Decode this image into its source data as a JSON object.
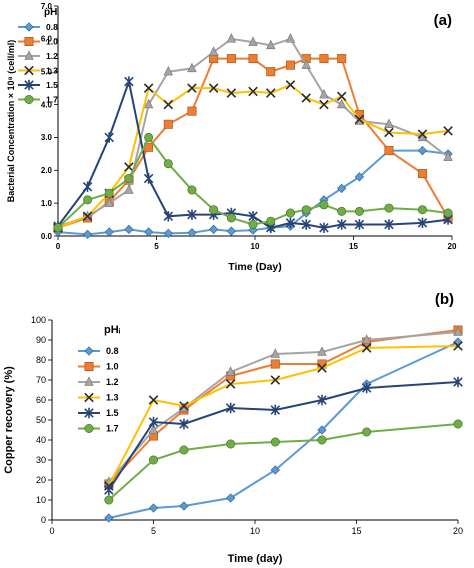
{
  "chart_data": [
    {
      "type": "line",
      "panel_label": "(a)",
      "title": "",
      "xlabel": "Time (Day)",
      "ylabel": "Bacterial Concentration × 10⁸ (cell/ml)",
      "xlim": [
        0,
        20
      ],
      "ylim": [
        0,
        7
      ],
      "xticks": [
        "0",
        "5",
        "10",
        "15",
        "20"
      ],
      "yticks": [
        "0.0",
        "1.0",
        "2.0",
        "3.0",
        "4.0",
        "5.0",
        "6.0",
        "7.0"
      ],
      "legend_title": "pHᵢ",
      "legend_position": "top-left",
      "grid": false,
      "series": [
        {
          "name": "0.8",
          "color": "#5b9bd5",
          "marker": "diamond",
          "x": [
            0,
            1.5,
            2.6,
            3.6,
            4.6,
            5.6,
            6.8,
            7.9,
            8.8,
            9.9,
            10.8,
            11.8,
            12.6,
            13.5,
            14.4,
            15.3,
            16.8,
            18.5,
            19.8
          ],
          "y": [
            0.12,
            0.05,
            0.12,
            0.2,
            0.12,
            0.08,
            0.1,
            0.2,
            0.15,
            0.18,
            0.25,
            0.3,
            0.7,
            1.1,
            1.45,
            1.8,
            2.6,
            2.6,
            2.5
          ]
        },
        {
          "name": "1.0",
          "color": "#ed7d31",
          "marker": "square",
          "x": [
            0,
            1.5,
            2.6,
            3.6,
            4.6,
            5.6,
            6.8,
            7.9,
            8.8,
            9.9,
            10.8,
            11.8,
            12.6,
            13.5,
            14.4,
            15.3,
            16.8,
            18.5,
            19.8
          ],
          "y": [
            0.25,
            0.55,
            1.05,
            1.7,
            2.7,
            3.4,
            3.8,
            5.4,
            5.4,
            5.4,
            5.0,
            5.2,
            5.4,
            5.4,
            5.4,
            3.7,
            2.6,
            1.9,
            0.55
          ]
        },
        {
          "name": "1.2",
          "color": "#a5a5a5",
          "marker": "triangle",
          "x": [
            0,
            1.5,
            2.6,
            3.6,
            4.6,
            5.6,
            6.8,
            7.9,
            8.8,
            9.9,
            10.8,
            11.8,
            12.6,
            13.5,
            14.4,
            15.3,
            16.8,
            18.5,
            19.8
          ],
          "y": [
            0.28,
            0.6,
            1.0,
            1.4,
            4.0,
            5.0,
            5.1,
            5.6,
            6.0,
            5.9,
            5.8,
            6.0,
            5.2,
            4.3,
            4.0,
            3.5,
            3.4,
            3.0,
            2.4
          ]
        },
        {
          "name": "1.3",
          "color": "#ffc000",
          "marker": "x",
          "x": [
            0,
            1.5,
            2.6,
            3.6,
            4.6,
            5.6,
            6.8,
            7.9,
            8.8,
            9.9,
            10.8,
            11.8,
            12.6,
            13.5,
            14.4,
            15.3,
            16.8,
            18.5,
            19.8
          ],
          "y": [
            0.25,
            0.6,
            1.3,
            2.1,
            4.5,
            4.0,
            4.5,
            4.5,
            4.35,
            4.4,
            4.35,
            4.6,
            4.2,
            4.0,
            4.25,
            3.55,
            3.15,
            3.1,
            3.2
          ]
        },
        {
          "name": "1.5",
          "color": "#264478",
          "marker": "star",
          "x": [
            0,
            1.5,
            2.6,
            3.6,
            4.6,
            5.6,
            6.8,
            7.9,
            8.8,
            9.9,
            10.8,
            11.8,
            12.6,
            13.5,
            14.4,
            15.3,
            16.8,
            18.5,
            19.8
          ],
          "y": [
            0.3,
            1.5,
            3.0,
            4.7,
            1.75,
            0.6,
            0.65,
            0.65,
            0.7,
            0.6,
            0.25,
            0.4,
            0.35,
            0.25,
            0.35,
            0.35,
            0.35,
            0.4,
            0.5
          ]
        },
        {
          "name": "1.7",
          "color": "#70ad47",
          "marker": "circle",
          "x": [
            0,
            1.5,
            2.6,
            3.6,
            4.6,
            5.6,
            6.8,
            7.9,
            8.8,
            9.9,
            10.8,
            11.8,
            12.6,
            13.5,
            14.4,
            15.3,
            16.8,
            18.5,
            19.8
          ],
          "y": [
            0.25,
            1.1,
            1.3,
            1.75,
            3.0,
            2.2,
            1.4,
            0.8,
            0.55,
            0.35,
            0.45,
            0.7,
            0.8,
            0.95,
            0.75,
            0.75,
            0.85,
            0.8,
            0.7
          ]
        }
      ]
    },
    {
      "type": "line",
      "panel_label": "(b)",
      "title": "",
      "xlabel": "Time (day)",
      "ylabel": "Copper recovery (%)",
      "xlim": [
        0,
        20
      ],
      "ylim": [
        0,
        100
      ],
      "xticks": [
        "0",
        "5",
        "10",
        "15",
        "20"
      ],
      "yticks": [
        "0",
        "10",
        "20",
        "30",
        "40",
        "50",
        "60",
        "70",
        "80",
        "90",
        "100"
      ],
      "legend_title": "pHᵢ",
      "legend_position": "top-left",
      "grid": false,
      "series": [
        {
          "name": "0.8",
          "color": "#5b9bd5",
          "marker": "diamond",
          "x": [
            2.8,
            5,
            6.5,
            8.8,
            11,
            13.3,
            15.5,
            20
          ],
          "y": [
            1,
            6,
            7,
            11,
            25,
            45,
            68,
            89
          ]
        },
        {
          "name": "1.0",
          "color": "#ed7d31",
          "marker": "square",
          "x": [
            2.8,
            5,
            6.5,
            8.8,
            11,
            13.3,
            15.5,
            20
          ],
          "y": [
            18,
            42,
            55,
            72,
            78,
            78,
            89,
            95
          ]
        },
        {
          "name": "1.2",
          "color": "#a5a5a5",
          "marker": "triangle",
          "x": [
            2.8,
            5,
            6.5,
            8.8,
            11,
            13.3,
            15.5,
            20
          ],
          "y": [
            19,
            45,
            56,
            74,
            83,
            84,
            90,
            94
          ]
        },
        {
          "name": "1.3",
          "color": "#ffc000",
          "marker": "x",
          "x": [
            2.8,
            5,
            6.5,
            8.8,
            11,
            13.3,
            15.5,
            20
          ],
          "y": [
            17,
            60,
            57,
            68,
            70,
            76,
            86,
            87
          ]
        },
        {
          "name": "1.5",
          "color": "#264478",
          "marker": "star",
          "x": [
            2.8,
            5,
            6.5,
            8.8,
            11,
            13.3,
            15.5,
            20
          ],
          "y": [
            15,
            49,
            48,
            56,
            55,
            60,
            66,
            69
          ]
        },
        {
          "name": "1.7",
          "color": "#70ad47",
          "marker": "circle",
          "x": [
            2.8,
            5,
            6.5,
            8.8,
            11,
            13.3,
            15.5,
            20
          ],
          "y": [
            10,
            30,
            35,
            38,
            39,
            40,
            44,
            48
          ]
        }
      ]
    }
  ]
}
